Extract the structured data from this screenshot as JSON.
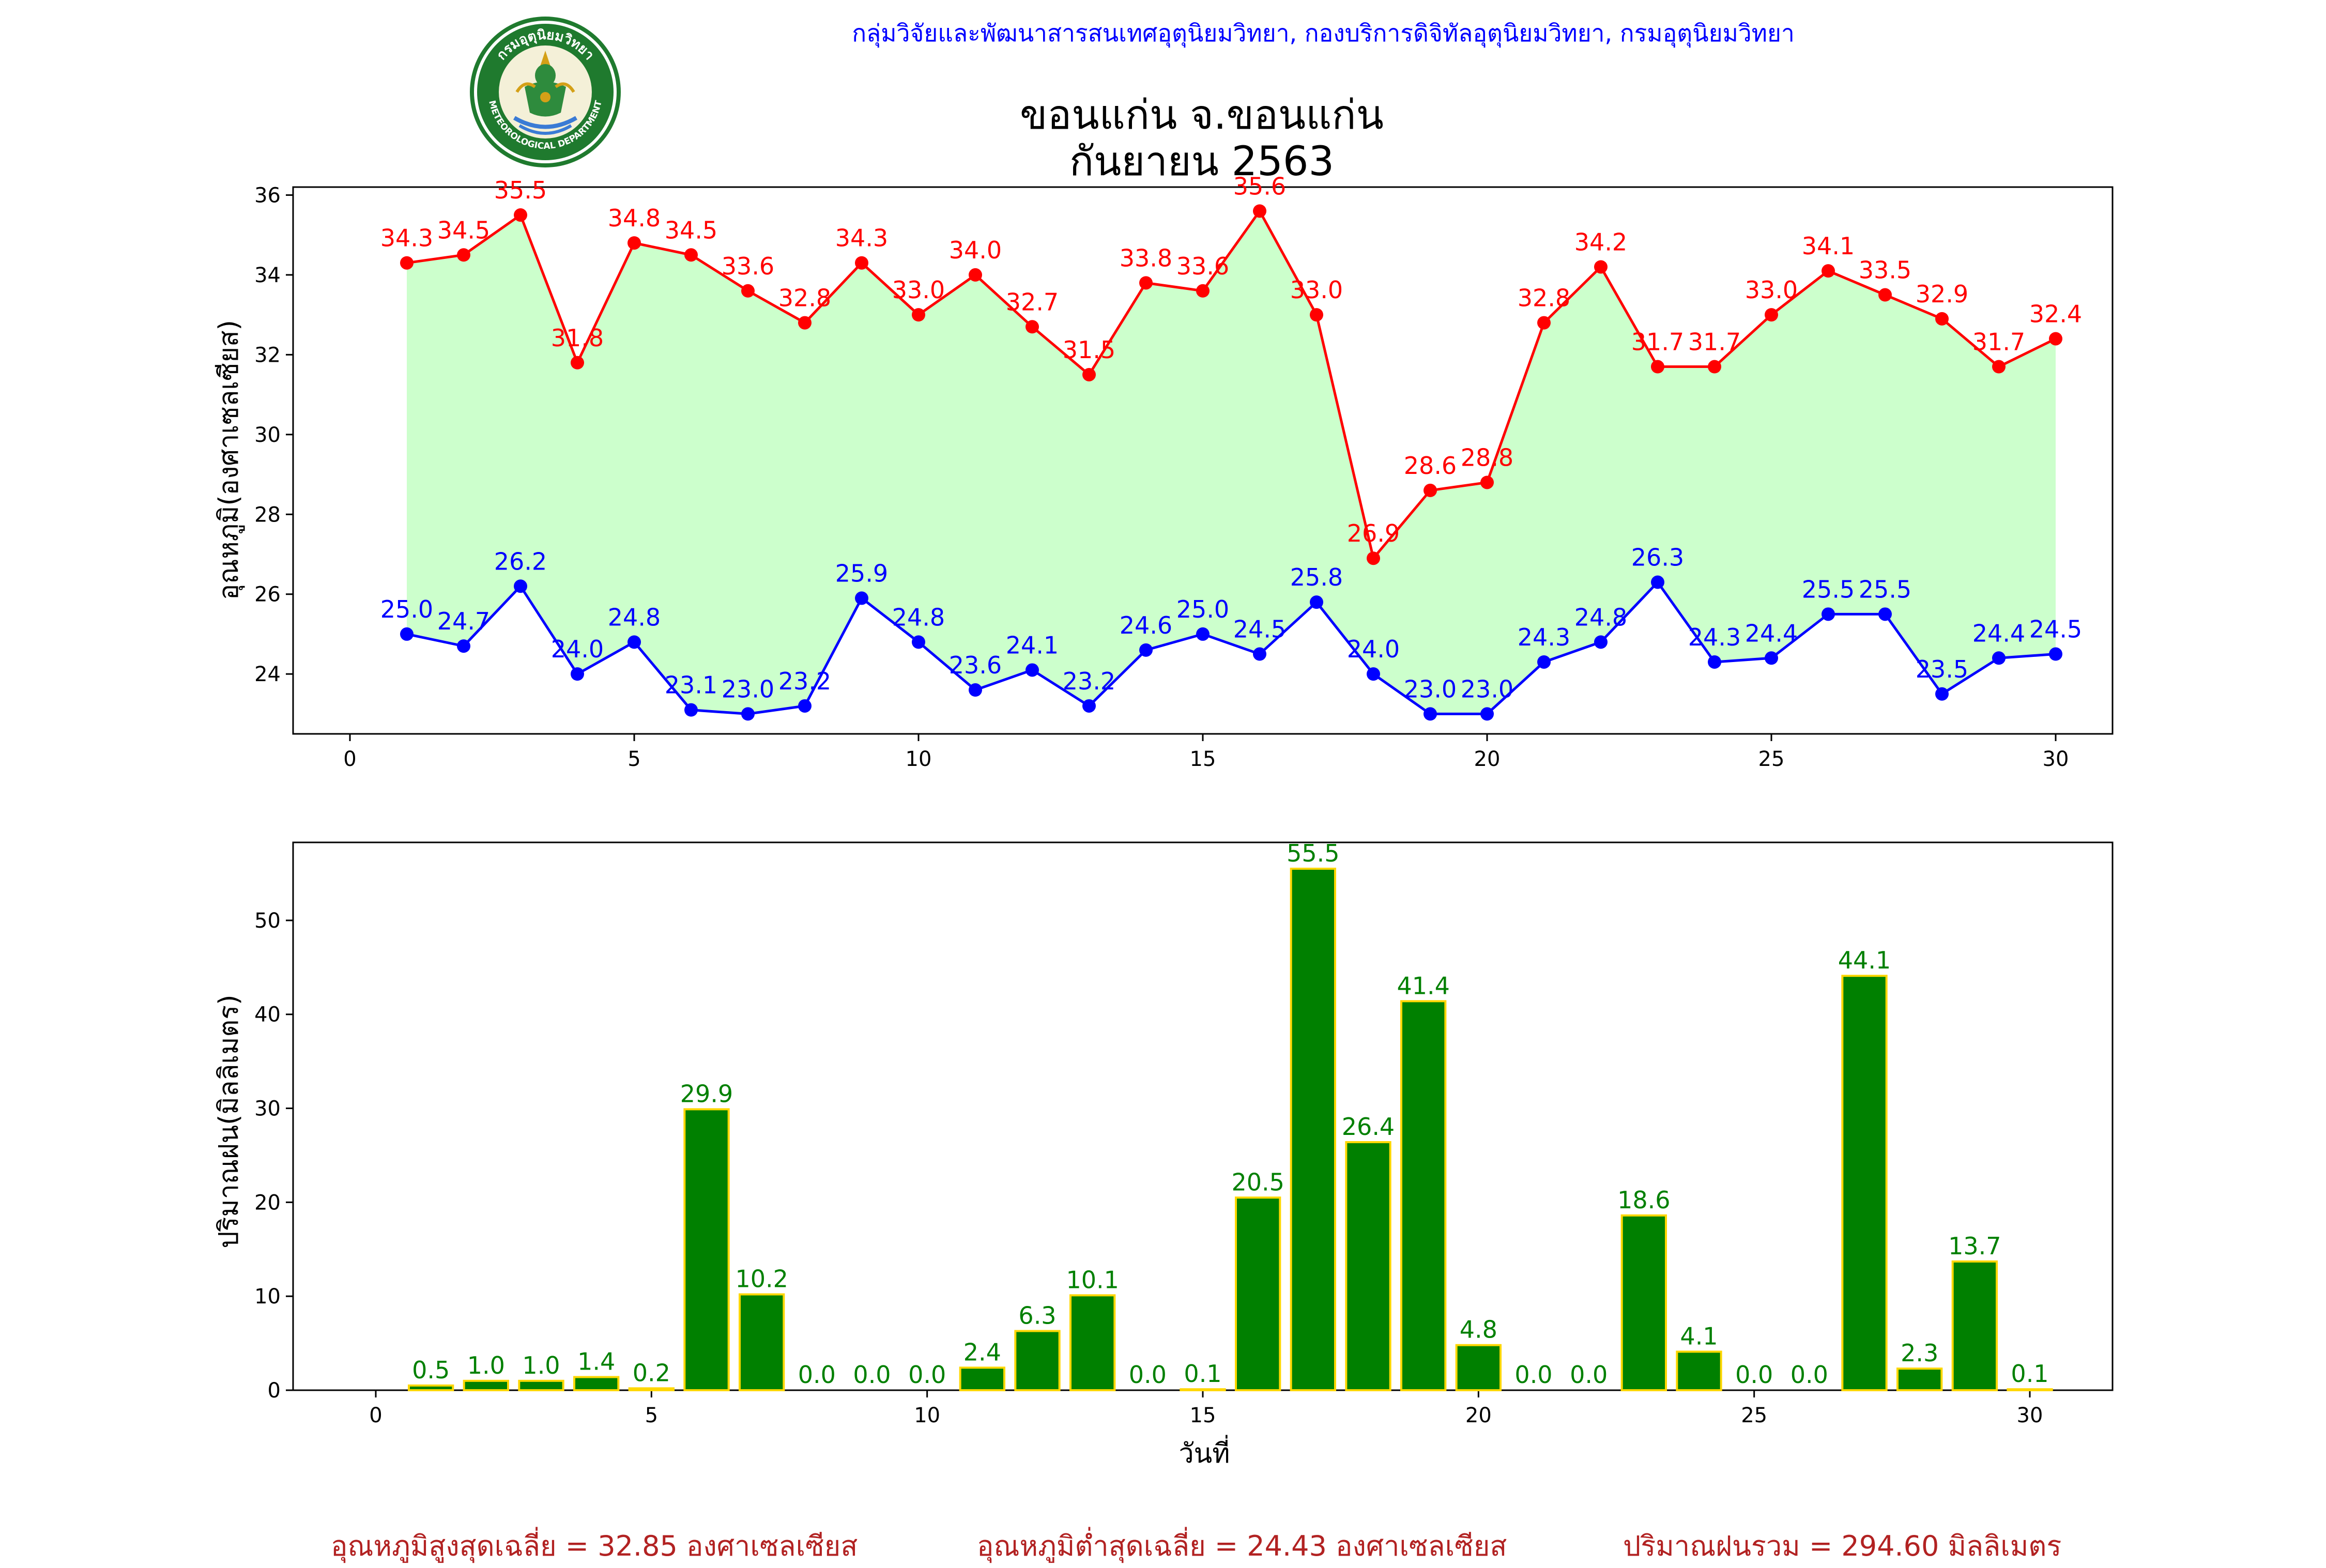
{
  "header": {
    "agency_line": "กลุ่มวิจัยและพัฒนาสารสนเทศอุตุนิยมวิทยา, กองบริการดิจิทัลอุตุนิยมวิทยา, กรมอุตุนิยมวิทยา",
    "title_line1": "ขอนแก่น จ.ขอนแก่น",
    "title_line2": "กันยายน 2563",
    "logo_text_top": "กรมอุตุนิยมวิทยา",
    "logo_text_bottom": "METEOROLOGICAL DEPARTMENT"
  },
  "footer": {
    "avg_max": "อุณหภูมิสูงสุดเฉลี่ย = 32.85 องศาเซลเซียส",
    "avg_min": "อุณหภูมิต่ำสุดเฉลี่ย = 24.43 องศาเซลเซียส",
    "total_rain": "ปริมาณฝนรวม = 294.60 มิลลิเมตร"
  },
  "colors": {
    "max_series": "#ff0000",
    "min_series": "#0000ff",
    "band_fill": "#ccffcc",
    "rain_bar": "#008000",
    "rain_edge": "#ffd700",
    "rain_label": "#008000",
    "footer_text": "#b22222",
    "header_text": "#0000ff"
  },
  "chart_data": [
    {
      "type": "line",
      "xlabel": "",
      "ylabel": "อุณหภูมิ(องศาเซลเซียส)",
      "xlim": [
        -1,
        31
      ],
      "ylim": [
        22.5,
        36.2
      ],
      "xticks": [
        0,
        5,
        10,
        15,
        20,
        25,
        30
      ],
      "yticks": [
        24,
        26,
        28,
        30,
        32,
        34,
        36
      ],
      "grid": false,
      "x": [
        1,
        2,
        3,
        4,
        5,
        6,
        7,
        8,
        9,
        10,
        11,
        12,
        13,
        14,
        15,
        16,
        17,
        18,
        19,
        20,
        21,
        22,
        23,
        24,
        25,
        26,
        27,
        28,
        29,
        30
      ],
      "series": [
        {
          "values": [
            34.3,
            34.5,
            35.5,
            31.8,
            34.8,
            34.5,
            33.6,
            32.8,
            34.3,
            33.0,
            34.0,
            32.7,
            31.5,
            33.8,
            33.6,
            35.6,
            33.0,
            26.9,
            28.6,
            28.8,
            32.8,
            34.2,
            31.7,
            31.7,
            33.0,
            34.1,
            33.5,
            32.9,
            31.7,
            32.4
          ]
        },
        {
          "values": [
            25.0,
            24.7,
            26.2,
            24.0,
            24.8,
            23.1,
            23.0,
            23.2,
            25.9,
            24.8,
            23.6,
            24.1,
            23.2,
            24.6,
            25.0,
            24.5,
            25.8,
            24.0,
            23.0,
            23.0,
            24.3,
            24.8,
            26.3,
            24.3,
            24.4,
            25.5,
            25.5,
            23.5,
            24.4,
            24.5
          ]
        }
      ]
    },
    {
      "type": "bar",
      "xlabel": "วันที่",
      "ylabel": "ปริมาณฝน(มิลลิเมตร)",
      "xlim": [
        -1.5,
        31.5
      ],
      "ylim": [
        0,
        58.3
      ],
      "xticks": [
        0,
        5,
        10,
        15,
        20,
        25,
        30
      ],
      "yticks": [
        0,
        10,
        20,
        30,
        40,
        50
      ],
      "grid": false,
      "x": [
        1,
        2,
        3,
        4,
        5,
        6,
        7,
        8,
        9,
        10,
        11,
        12,
        13,
        14,
        15,
        16,
        17,
        18,
        19,
        20,
        21,
        22,
        23,
        24,
        25,
        26,
        27,
        28,
        29,
        30
      ],
      "values": [
        0.5,
        1.0,
        1.0,
        1.4,
        0.2,
        29.9,
        10.2,
        0.0,
        0.0,
        0.0,
        2.4,
        6.3,
        10.1,
        0.0,
        0.1,
        20.5,
        55.5,
        26.4,
        41.4,
        4.8,
        0.0,
        0.0,
        18.6,
        4.1,
        0.0,
        0.0,
        44.1,
        2.3,
        13.7,
        0.1
      ]
    }
  ]
}
